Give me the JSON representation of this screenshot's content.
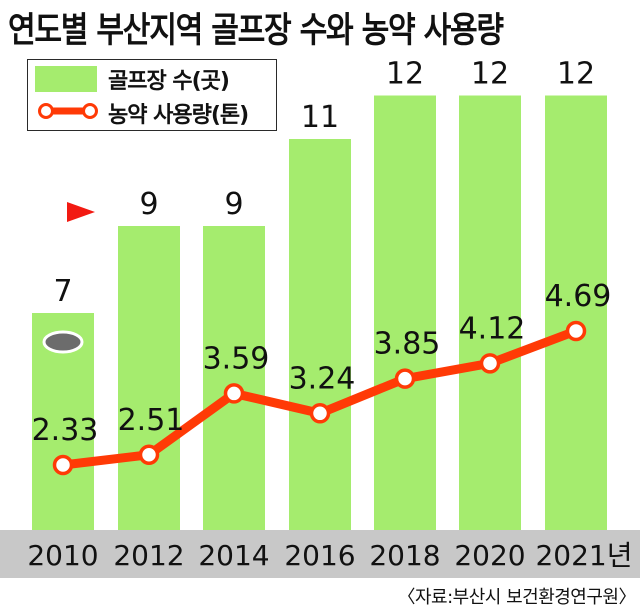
{
  "title": "연도별 부산지역 골프장 수와 농약 사용량",
  "legend": {
    "bars_label": "골프장 수(곳)",
    "line_label": "농약 사용량(톤)"
  },
  "source": "〈자료:부산시 보건환경연구원〉",
  "colors": {
    "bar": "#a5ec6e",
    "line": "#ff3a06",
    "marker_fill": "#ffffff",
    "axis_band": "#c8c8c8",
    "text": "#111111",
    "flag": "#f21a12",
    "hole": "#6c6c6c"
  },
  "icons": [
    "golf-flag-icon",
    "golf-hole-icon"
  ],
  "chart_data": {
    "type": "bar",
    "categories": [
      "2010",
      "2012",
      "2014",
      "2016",
      "2018",
      "2020",
      "2021년"
    ],
    "series": [
      {
        "name": "골프장 수(곳)",
        "type": "bar",
        "values": [
          7,
          9,
          9,
          11,
          12,
          12,
          12
        ]
      },
      {
        "name": "농약 사용량(톤)",
        "type": "line",
        "values": [
          2.33,
          2.51,
          3.59,
          3.24,
          3.85,
          4.12,
          4.69
        ]
      }
    ],
    "value_labels": {
      "bars": [
        "7",
        "9",
        "9",
        "11",
        "12",
        "12",
        "12"
      ],
      "line": [
        "2.33",
        "2.51",
        "3.59",
        "3.24",
        "3.85",
        "4.12",
        "4.69"
      ]
    },
    "grid": false,
    "legend_position": "top-left"
  }
}
